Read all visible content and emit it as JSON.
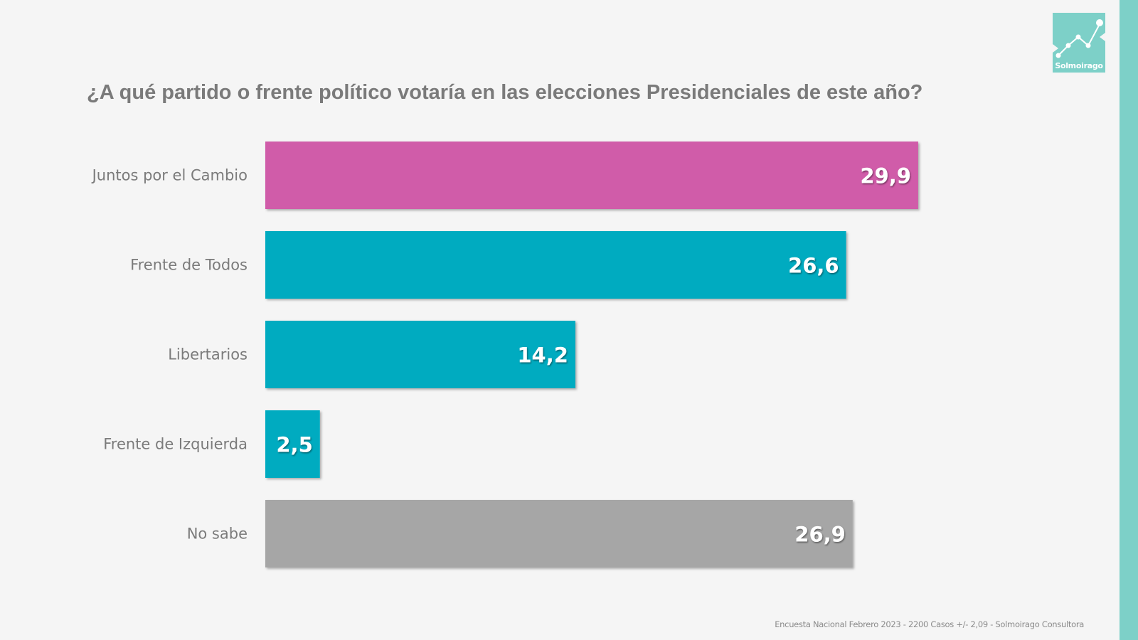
{
  "header": {
    "title": "¿A qué partido o frente político votaría en las elecciones Presidenciales de este año?"
  },
  "logo": {
    "text": "Solmoirago",
    "color": "#7dd0c8"
  },
  "footer": {
    "source": "Encuesta Nacional Febrero 2023 - 2200 Casos +/- 2,09  - Solmoirago Consultora"
  },
  "colors": {
    "magenta": "#d05ca9",
    "teal": "#00abc0",
    "gray": "#a6a6a6",
    "accent_stripe": "#7dd0c8"
  },
  "chart_data": {
    "type": "bar",
    "orientation": "horizontal",
    "title": "¿A qué partido o frente político votaría en las elecciones Presidenciales de este año?",
    "xlabel": "",
    "ylabel": "",
    "grid": false,
    "legend": "none",
    "xlim": [
      0,
      30
    ],
    "categories": [
      "Juntos por el Cambio",
      "Frente de Todos",
      "Libertarios",
      "Frente de Izquierda",
      "No sabe"
    ],
    "values": [
      29.9,
      26.6,
      14.2,
      2.5,
      26.9
    ],
    "value_labels": [
      "29,9",
      "26,6",
      "14,2",
      "2,5",
      "26,9"
    ],
    "bar_colors": [
      "#d05ca9",
      "#00abc0",
      "#00abc0",
      "#00abc0",
      "#a6a6a6"
    ]
  }
}
